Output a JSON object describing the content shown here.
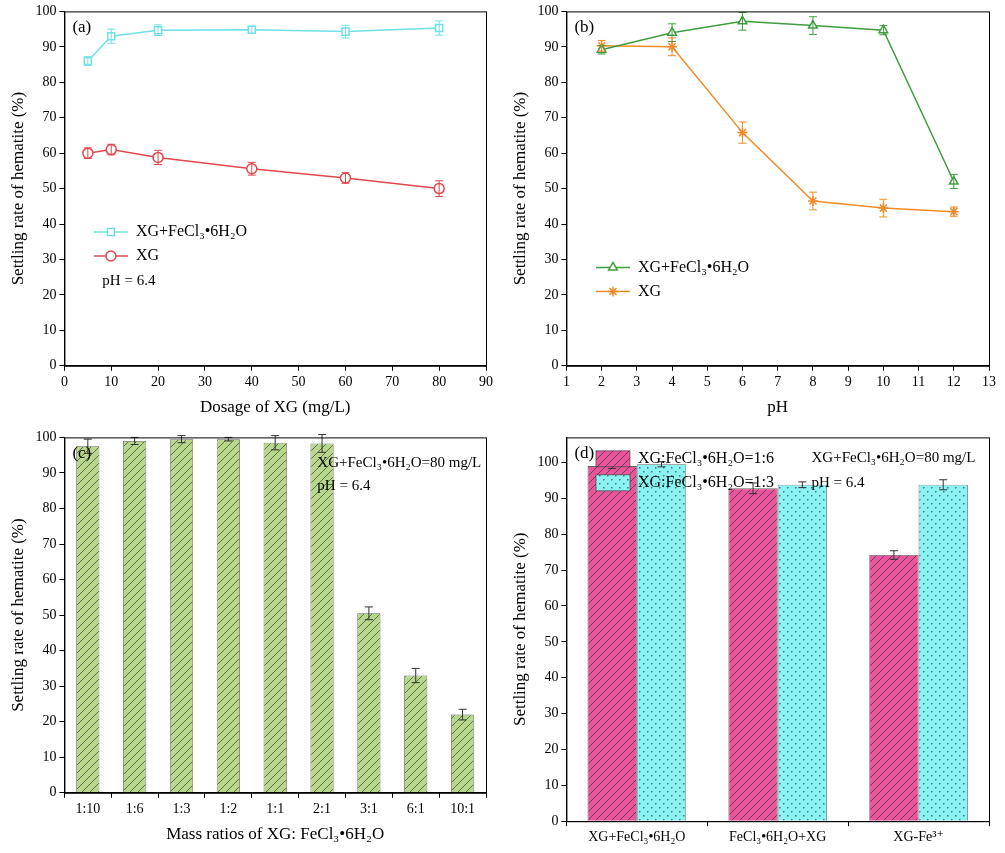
{
  "chart_data": [
    {
      "type": "line",
      "title": "(a)",
      "x_label": "Dosage of XG (mg/L)",
      "y_label": "Settling rate of hematite (%)",
      "x": [
        5,
        10,
        20,
        40,
        60,
        80
      ],
      "series": [
        {
          "name": "XG+FeCl₃•6H₂O",
          "color": "#6fe0e6",
          "marker": "square",
          "values": [
            86,
            93,
            94.7,
            94.8,
            94.3,
            95.3
          ],
          "errors": [
            1.2,
            2,
            1.5,
            1,
            1.8,
            2
          ]
        },
        {
          "name": "XG",
          "color": "#e0474c",
          "marker": "circle",
          "values": [
            60,
            61,
            58.8,
            55.6,
            53,
            50
          ],
          "errors": [
            1.5,
            1.5,
            2,
            1.8,
            1.5,
            2.2
          ]
        }
      ],
      "xlim": [
        0,
        90
      ],
      "xticks": [
        0,
        10,
        20,
        30,
        40,
        50,
        60,
        70,
        80,
        90
      ],
      "ylim": [
        0,
        100
      ],
      "yticks": [
        0,
        10,
        20,
        30,
        40,
        50,
        60,
        70,
        80,
        90,
        100
      ],
      "annotations": [
        "pH = 6.4"
      ],
      "legend": "left",
      "grid": false
    },
    {
      "type": "line",
      "title": "(b)",
      "x_label": "pH",
      "y_label": "Settling rate of hematite (%)",
      "x": [
        2,
        4,
        6,
        8,
        10,
        12
      ],
      "series": [
        {
          "name": "XG+FeCl₃•6H₂O",
          "color": "#3f9d3f",
          "marker": "triangle",
          "values": [
            89.2,
            94,
            97.2,
            96,
            94.7,
            52
          ],
          "errors": [
            1.2,
            2.5,
            2.5,
            2.5,
            1.3,
            2
          ]
        },
        {
          "name": "XG",
          "color": "#f08c28",
          "marker": "star",
          "values": [
            90.3,
            90,
            65.8,
            46.5,
            44.5,
            43.5
          ],
          "errors": [
            1.5,
            2.5,
            3,
            2.5,
            2.5,
            1.3
          ]
        }
      ],
      "xlim": [
        1,
        13
      ],
      "xticks": [
        1,
        2,
        3,
        4,
        5,
        6,
        7,
        8,
        9,
        10,
        11,
        12,
        13
      ],
      "ylim": [
        0,
        100
      ],
      "yticks": [
        0,
        10,
        20,
        30,
        40,
        50,
        60,
        70,
        80,
        90,
        100
      ],
      "legend": "lower left",
      "grid": false
    },
    {
      "type": "bar",
      "title": "(c)",
      "x_label": "Mass ratios of XG: FeCl₃•6H₂O",
      "y_label": "Settling rate of hematite (%)",
      "categories": [
        "1:10",
        "1:6",
        "1:3",
        "1:2",
        "1:1",
        "2:1",
        "3:1",
        "6:1",
        "10:1"
      ],
      "values": [
        97.5,
        99,
        99.5,
        99.5,
        98.5,
        98.3,
        50.5,
        33,
        22
      ],
      "errors": [
        2,
        1,
        1,
        0.5,
        2,
        2.5,
        1.8,
        2,
        1.5
      ],
      "color": "#b7d78a",
      "ylim": [
        0,
        100
      ],
      "yticks": [
        0,
        10,
        20,
        30,
        40,
        50,
        60,
        70,
        80,
        90,
        100
      ],
      "annotations": [
        "XG+FeCl₃•6H₂O=80 mg/L",
        "pH = 6.4"
      ],
      "grid": false
    },
    {
      "type": "bar",
      "title": "(d)",
      "y_label": "Settling rate of hematite (%)",
      "categories": [
        "XG+FeCl₃•6H₂O",
        "FeCl₃•6H₂O+XG",
        "XG-Fe³⁺"
      ],
      "series": [
        {
          "name": "XG:FeCl₃•6H₂O=1:6",
          "color": "#e8559a",
          "values": [
            99,
            92.8,
            74.2
          ],
          "errors": [
            0.7,
            1.5,
            1.2
          ]
        },
        {
          "name": "XG:FeCl₃•6H₂O=1:3",
          "color": "#8cf3f3",
          "values": [
            99.5,
            93.8,
            93.8
          ],
          "errors": [
            0.7,
            0.8,
            1.4
          ]
        }
      ],
      "ylim": [
        0,
        107
      ],
      "yticks": [
        0,
        10,
        20,
        30,
        40,
        50,
        60,
        70,
        80,
        90,
        100
      ],
      "annotations": [
        "XG+FeCl₃•6H₂O=80 mg/L",
        "pH = 6.4"
      ],
      "legend": "upper left",
      "grid": false
    }
  ]
}
